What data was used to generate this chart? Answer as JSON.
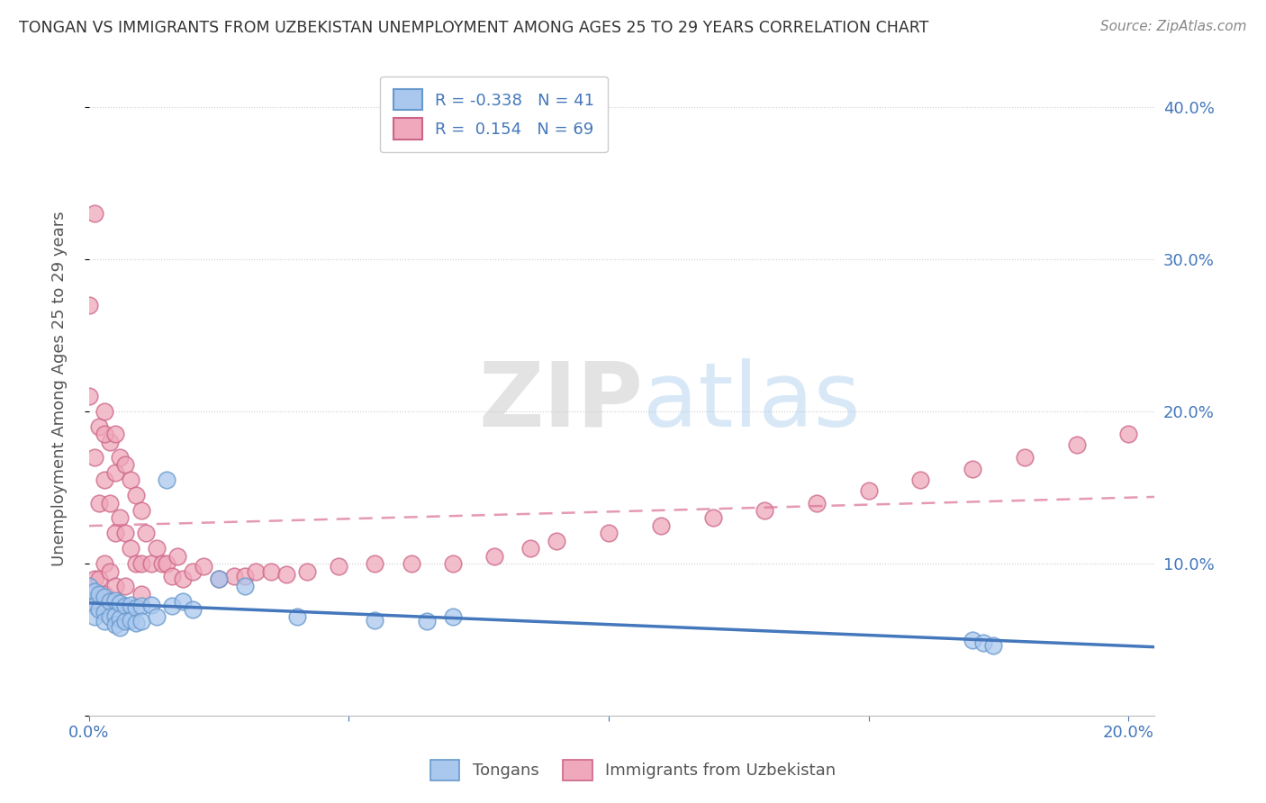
{
  "title": "TONGAN VS IMMIGRANTS FROM UZBEKISTAN UNEMPLOYMENT AMONG AGES 25 TO 29 YEARS CORRELATION CHART",
  "source": "Source: ZipAtlas.com",
  "ylabel": "Unemployment Among Ages 25 to 29 years",
  "xlim": [
    0.0,
    0.205
  ],
  "ylim": [
    0.0,
    0.43
  ],
  "ytick_vals": [
    0.0,
    0.1,
    0.2,
    0.3,
    0.4
  ],
  "ytick_labels": [
    "",
    "10.0%",
    "20.0%",
    "30.0%",
    "40.0%"
  ],
  "xtick_vals": [
    0.0,
    0.05,
    0.1,
    0.15,
    0.2
  ],
  "xtick_labels_show": [
    "0.0%",
    "",
    "",
    "",
    "20.0%"
  ],
  "legend_label_1": "Tongans",
  "legend_label_2": "Immigrants from Uzbekistan",
  "r1": -0.338,
  "n1": 41,
  "r2": 0.154,
  "n2": 69,
  "color_tongan": "#aac8ee",
  "color_uzbek": "#f0a8bc",
  "edge_color_tongan": "#6699cc",
  "edge_color_uzbek": "#cc6688",
  "line_color_tongan": "#4477bb",
  "line_color_uzbek": "#dd7799",
  "watermark_zip": "#cccccc",
  "watermark_atlas": "#aaccee",
  "background_color": "#ffffff",
  "grid_color": "#cccccc",
  "title_color": "#333333",
  "tick_color": "#4477bb",
  "source_color": "#888888",
  "ylabel_color": "#555555",
  "tongan_x": [
    0.0,
    0.0,
    0.001,
    0.001,
    0.001,
    0.002,
    0.002,
    0.003,
    0.003,
    0.003,
    0.004,
    0.004,
    0.005,
    0.005,
    0.005,
    0.006,
    0.006,
    0.006,
    0.007,
    0.007,
    0.008,
    0.008,
    0.009,
    0.009,
    0.01,
    0.01,
    0.012,
    0.013,
    0.015,
    0.016,
    0.018,
    0.02,
    0.025,
    0.03,
    0.04,
    0.055,
    0.065,
    0.17,
    0.172,
    0.174,
    0.07
  ],
  "tongan_y": [
    0.085,
    0.075,
    0.082,
    0.072,
    0.065,
    0.08,
    0.07,
    0.078,
    0.068,
    0.062,
    0.075,
    0.065,
    0.076,
    0.066,
    0.06,
    0.074,
    0.064,
    0.058,
    0.072,
    0.062,
    0.073,
    0.063,
    0.071,
    0.061,
    0.072,
    0.062,
    0.073,
    0.065,
    0.155,
    0.072,
    0.075,
    0.07,
    0.09,
    0.085,
    0.065,
    0.063,
    0.062,
    0.05,
    0.048,
    0.046,
    0.065
  ],
  "uzbek_x": [
    0.0,
    0.0,
    0.0,
    0.001,
    0.001,
    0.001,
    0.001,
    0.002,
    0.002,
    0.002,
    0.003,
    0.003,
    0.003,
    0.003,
    0.004,
    0.004,
    0.004,
    0.005,
    0.005,
    0.005,
    0.006,
    0.006,
    0.007,
    0.007,
    0.007,
    0.008,
    0.008,
    0.009,
    0.009,
    0.01,
    0.01,
    0.01,
    0.011,
    0.012,
    0.013,
    0.014,
    0.015,
    0.016,
    0.017,
    0.018,
    0.02,
    0.022,
    0.025,
    0.028,
    0.03,
    0.032,
    0.035,
    0.038,
    0.042,
    0.048,
    0.055,
    0.062,
    0.07,
    0.078,
    0.085,
    0.09,
    0.1,
    0.11,
    0.12,
    0.13,
    0.14,
    0.15,
    0.16,
    0.17,
    0.18,
    0.19,
    0.2,
    0.003,
    0.005
  ],
  "uzbek_y": [
    0.27,
    0.21,
    0.08,
    0.33,
    0.17,
    0.09,
    0.075,
    0.19,
    0.14,
    0.09,
    0.2,
    0.155,
    0.1,
    0.08,
    0.18,
    0.14,
    0.095,
    0.16,
    0.12,
    0.085,
    0.17,
    0.13,
    0.165,
    0.12,
    0.085,
    0.155,
    0.11,
    0.145,
    0.1,
    0.135,
    0.1,
    0.08,
    0.12,
    0.1,
    0.11,
    0.1,
    0.1,
    0.092,
    0.105,
    0.09,
    0.095,
    0.098,
    0.09,
    0.092,
    0.092,
    0.095,
    0.095,
    0.093,
    0.095,
    0.098,
    0.1,
    0.1,
    0.1,
    0.105,
    0.11,
    0.115,
    0.12,
    0.125,
    0.13,
    0.135,
    0.14,
    0.148,
    0.155,
    0.162,
    0.17,
    0.178,
    0.185,
    0.185,
    0.185
  ]
}
